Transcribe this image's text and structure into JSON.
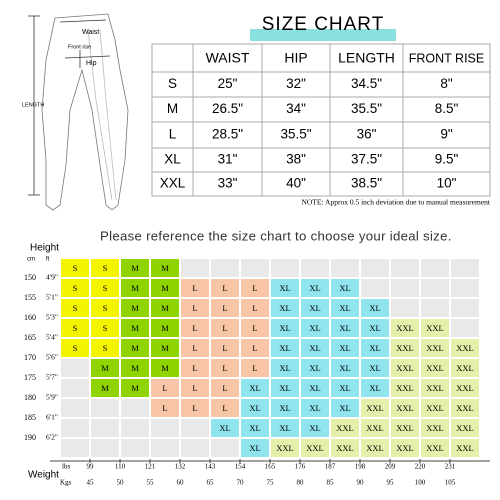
{
  "figure": {
    "waist": "Waist",
    "front_rise": "Front rise",
    "hip": "Hip",
    "length": "LENGTH"
  },
  "size_table": {
    "title": "SIZE  CHART",
    "headers": [
      "WAIST",
      "HIP",
      "LENGTH",
      "FRONT RISE"
    ],
    "rows": [
      [
        "S",
        "25\"",
        "32\"",
        "34.5\"",
        "8\""
      ],
      [
        "M",
        "26.5\"",
        "34\"",
        "35.5\"",
        "8.5\""
      ],
      [
        "L",
        "28.5\"",
        "35.5\"",
        "36\"",
        "9\""
      ],
      [
        "XL",
        "31\"",
        "38\"",
        "37.5\"",
        "9.5\""
      ],
      [
        "XXL",
        "33\"",
        "40\"",
        "38.5\"",
        "10\""
      ]
    ]
  },
  "note": "NOTE: Approx 0.5 inch deviation due to manual measurement",
  "instruction": "Please reference the size chart to choose your ideal size.",
  "grid": {
    "y_title": "Height",
    "y_units": [
      "cm",
      "ft"
    ],
    "heights": [
      [
        "150",
        "4'9\""
      ],
      [
        "155",
        "5'1\""
      ],
      [
        "160",
        "5'3\""
      ],
      [
        "165",
        "5'4\""
      ],
      [
        "170",
        "5'6\""
      ],
      [
        "175",
        "5'7\""
      ],
      [
        "180",
        "5'9\""
      ],
      [
        "185",
        "6'1\""
      ],
      [
        "190",
        "6'2\""
      ]
    ],
    "x_title": "Weight",
    "x_units": [
      "lbs",
      "Kgs"
    ],
    "lbs": [
      "99",
      "110",
      "121",
      "132",
      "143",
      "154",
      "165",
      "176",
      "187",
      "198",
      "209",
      "220",
      "231"
    ],
    "kgs": [
      "45",
      "50",
      "55",
      "60",
      "65",
      "70",
      "75",
      "80",
      "85",
      "90",
      "95",
      "100",
      "105"
    ],
    "colors": {
      "S": "#f4f400",
      "M": "#8fd400",
      "L": "#f8c6a6",
      "XL": "#8fe4ee",
      "XXL": "#e4efaa"
    },
    "rows": [
      [
        "S",
        "S",
        "M",
        "M",
        null,
        null,
        null,
        null,
        null,
        null,
        null,
        null,
        null,
        null
      ],
      [
        "S",
        "S",
        "M",
        "M",
        "L",
        "L",
        "L",
        "XL",
        "XL",
        "XL",
        null,
        null,
        null,
        null
      ],
      [
        "S",
        "S",
        "M",
        "M",
        "L",
        "L",
        "L",
        "XL",
        "XL",
        "XL",
        "XL",
        null,
        null,
        null
      ],
      [
        "S",
        "S",
        "M",
        "M",
        "L",
        "L",
        "L",
        "XL",
        "XL",
        "XL",
        "XL",
        "XXL",
        "XXL",
        null
      ],
      [
        "S",
        "S",
        "M",
        "M",
        "L",
        "L",
        "L",
        "XL",
        "XL",
        "XL",
        "XL",
        "XXL",
        "XXL",
        "XXL"
      ],
      [
        null,
        "M",
        "M",
        "M",
        "L",
        "L",
        "L",
        "XL",
        "XL",
        "XL",
        "XL",
        "XXL",
        "XXL",
        "XXL"
      ],
      [
        null,
        "M",
        "M",
        "L",
        "L",
        "L",
        "XL",
        "XL",
        "XL",
        "XL",
        "XL",
        "XXL",
        "XXL",
        "XXL"
      ],
      [
        null,
        null,
        null,
        "L",
        "L",
        "L",
        "XL",
        "XL",
        "XL",
        "XL",
        "XXL",
        "XXL",
        "XXL",
        "XXL"
      ],
      [
        null,
        null,
        null,
        null,
        null,
        "XL",
        "XL",
        "XL",
        "XL",
        "XXL",
        "XXL",
        "XXL",
        "XXL",
        "XXL"
      ],
      [
        null,
        null,
        null,
        null,
        null,
        null,
        "XL",
        "XXL",
        "XXL",
        "XXL",
        "XXL",
        "XXL",
        "XXL",
        "XXL"
      ]
    ]
  }
}
